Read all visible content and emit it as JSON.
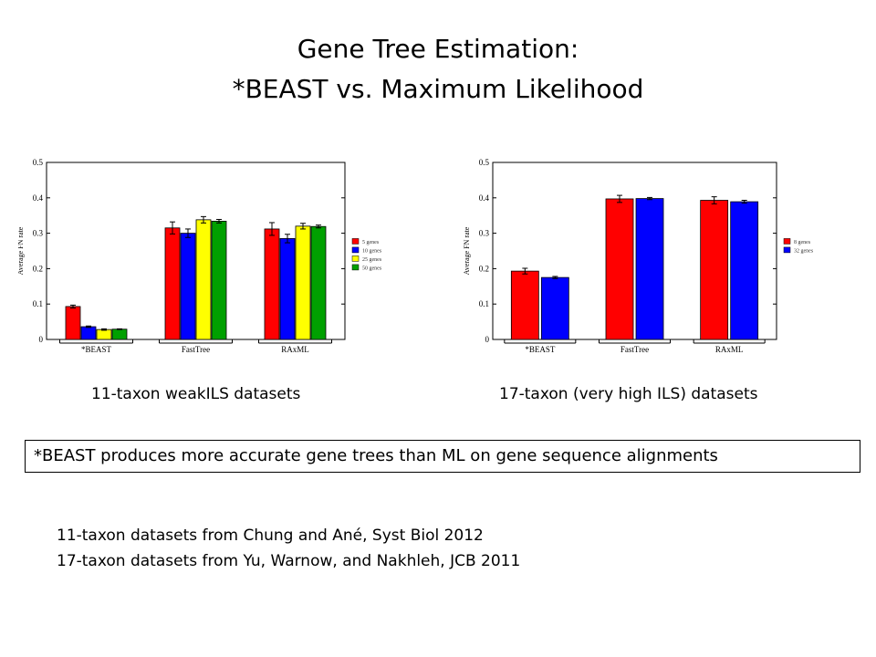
{
  "slide": {
    "title_line1": "Gene Tree Estimation:",
    "title_line2": "*BEAST vs. Maximum Likelihood",
    "callout": "*BEAST produces more accurate gene trees than ML on gene sequence alignments",
    "references": [
      "11-taxon datasets from Chung and Ané, Syst Biol 2012",
      "17-taxon datasets from Yu, Warnow, and Nakhleh, JCB 2011"
    ]
  },
  "colors": {
    "series": [
      "#ff0000",
      "#0000ff",
      "#ffff00",
      "#00a000"
    ]
  },
  "chart_data": [
    {
      "type": "bar",
      "caption": "11-taxon weakILS datasets",
      "ylabel": "Average FN rate",
      "ylim": [
        0,
        0.5
      ],
      "yticks": [
        "0",
        "0.1",
        "0.2",
        "0.3",
        "0.4",
        "0.5"
      ],
      "categories": [
        "*BEAST",
        "FastTree",
        "RAxML"
      ],
      "legend_position": "right",
      "grid": false,
      "series": [
        {
          "name": "5 genes",
          "values": [
            0.093,
            0.315,
            0.312
          ],
          "errors": [
            0.004,
            0.017,
            0.018
          ]
        },
        {
          "name": "10 genes",
          "values": [
            0.036,
            0.3,
            0.285
          ],
          "errors": [
            0.002,
            0.012,
            0.012
          ]
        },
        {
          "name": "25 genes",
          "values": [
            0.028,
            0.338,
            0.32
          ],
          "errors": [
            0.002,
            0.009,
            0.008
          ]
        },
        {
          "name": "50 genes",
          "values": [
            0.029,
            0.334,
            0.319
          ],
          "errors": [
            0.001,
            0.005,
            0.004
          ]
        }
      ]
    },
    {
      "type": "bar",
      "caption": "17-taxon (very high ILS) datasets",
      "ylabel": "Average FN rate",
      "ylim": [
        0,
        0.5
      ],
      "yticks": [
        "0",
        "0.1",
        "0.2",
        "0.3",
        "0.4",
        "0.5"
      ],
      "categories": [
        "*BEAST",
        "FastTree",
        "RAxML"
      ],
      "legend_position": "right",
      "grid": false,
      "series": [
        {
          "name": "8 genes",
          "values": [
            0.193,
            0.397,
            0.393
          ],
          "errors": [
            0.008,
            0.01,
            0.01
          ]
        },
        {
          "name": "32 genes",
          "values": [
            0.175,
            0.398,
            0.389
          ],
          "errors": [
            0.003,
            0.003,
            0.004
          ]
        }
      ]
    }
  ]
}
